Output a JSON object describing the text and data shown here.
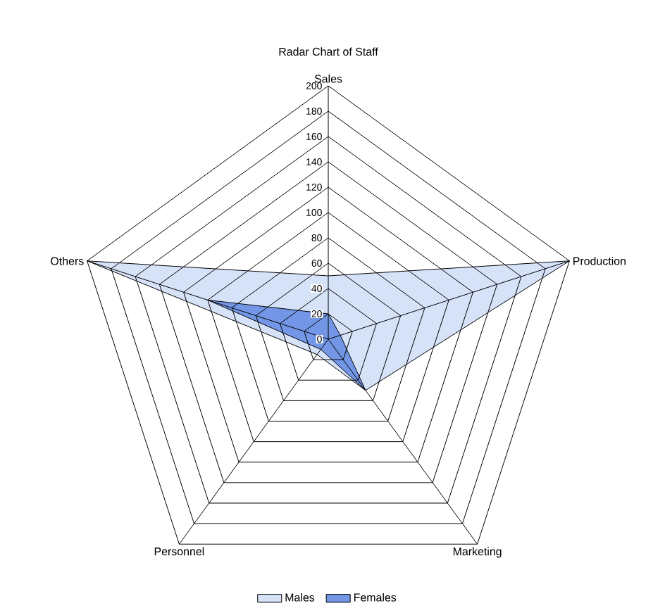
{
  "chart_data": {
    "type": "radar",
    "title": "Radar Chart of Staff",
    "categories": [
      "Sales",
      "Production",
      "Marketing",
      "Personnel",
      "Others"
    ],
    "ylim": [
      0,
      200
    ],
    "yticks": [
      0,
      20,
      40,
      60,
      80,
      100,
      120,
      140,
      160,
      180,
      200
    ],
    "grid": true,
    "legend": "bottom",
    "series": [
      {
        "name": "Males",
        "color": "#d6e2f8",
        "values": [
          50,
          200,
          50,
          15,
          200
        ]
      },
      {
        "name": "Females",
        "color": "#7397e6",
        "values": [
          20,
          10,
          50,
          10,
          100
        ]
      }
    ]
  }
}
